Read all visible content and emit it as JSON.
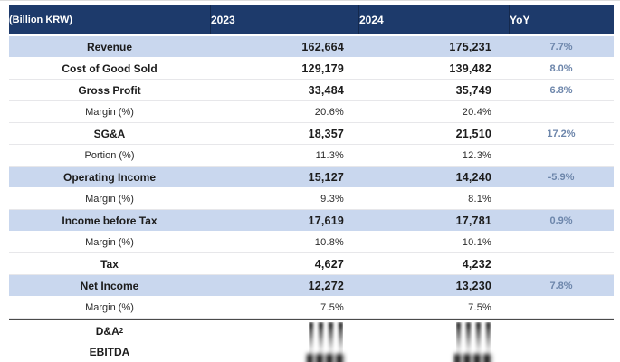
{
  "table": {
    "unit_label": "(Billion KRW)",
    "columns": [
      "2023",
      "2024",
      "YoY"
    ],
    "rows": [
      {
        "label": "Revenue",
        "y2023": "162,664",
        "y2024": "175,231",
        "yoy": "7.7%",
        "style": "highlight"
      },
      {
        "label": "Cost of Good Sold",
        "y2023": "129,179",
        "y2024": "139,482",
        "yoy": "8.0%",
        "style": "main"
      },
      {
        "label": "Gross Profit",
        "y2023": "33,484",
        "y2024": "35,749",
        "yoy": "6.8%",
        "style": "main"
      },
      {
        "label": "Margin (%)",
        "y2023": "20.6%",
        "y2024": "20.4%",
        "yoy": "",
        "style": "sub"
      },
      {
        "label": "SG&A",
        "y2023": "18,357",
        "y2024": "21,510",
        "yoy": "17.2%",
        "style": "main"
      },
      {
        "label": "Portion (%)",
        "y2023": "11.3%",
        "y2024": "12.3%",
        "yoy": "",
        "style": "sub"
      },
      {
        "label": "Operating Income",
        "y2023": "15,127",
        "y2024": "14,240",
        "yoy": "-5.9%",
        "style": "highlight"
      },
      {
        "label": "Margin (%)",
        "y2023": "9.3%",
        "y2024": "8.1%",
        "yoy": "",
        "style": "sub"
      },
      {
        "label": "Income before Tax",
        "y2023": "17,619",
        "y2024": "17,781",
        "yoy": "0.9%",
        "style": "highlight"
      },
      {
        "label": "Margin (%)",
        "y2023": "10.8%",
        "y2024": "10.1%",
        "yoy": "",
        "style": "sub"
      },
      {
        "label": "Tax",
        "y2023": "4,627",
        "y2024": "4,232",
        "yoy": "",
        "style": "main"
      },
      {
        "label": "Net Income",
        "y2023": "12,272",
        "y2024": "13,230",
        "yoy": "7.8%",
        "style": "highlight"
      },
      {
        "label": "Margin (%)",
        "y2023": "7.5%",
        "y2024": "7.5%",
        "yoy": "",
        "style": "sub"
      }
    ],
    "footer_rows": [
      {
        "label": "D&A",
        "sup": "2",
        "values_blurred": true
      },
      {
        "label": "EBITDA",
        "values_blurred": true
      }
    ]
  },
  "colors": {
    "header_bg": "#1d3a6b",
    "header_text": "#ffffff",
    "highlight_bg": "#c9d7ee",
    "yoy_text": "#6d86ab",
    "text": "#1c1c1c",
    "separator": "#4a4a4a",
    "row_line": "#e7e7ea"
  }
}
